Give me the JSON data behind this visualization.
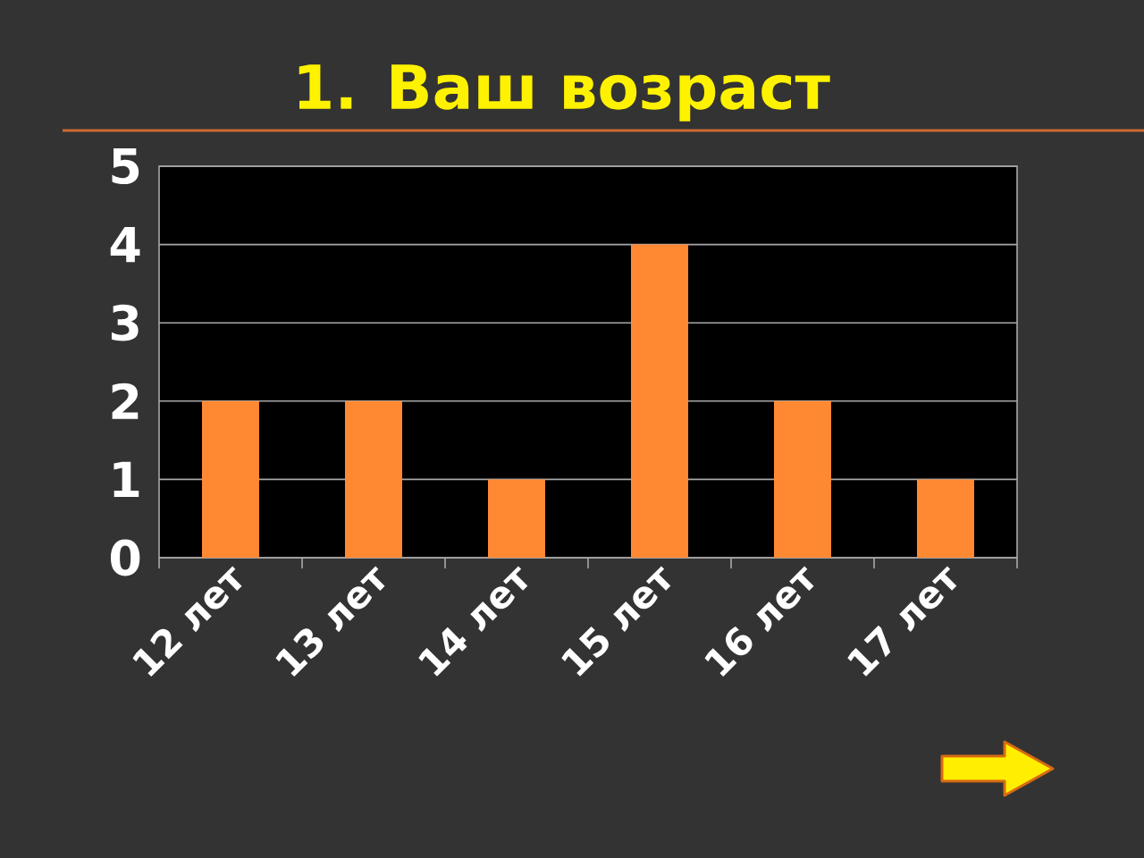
{
  "chart_data": {
    "type": "bar",
    "title": "1. Ваш возраст",
    "categories": [
      "12 лет",
      "13 лет",
      "14 лет",
      "15 лет",
      "16 лет",
      "17 лет"
    ],
    "values": [
      2,
      2,
      1,
      4,
      2,
      1
    ],
    "color": "#ff8833",
    "ylim": [
      0,
      5
    ],
    "yticks": [
      0,
      1,
      2,
      3,
      4,
      5
    ],
    "grid": "y"
  }
}
